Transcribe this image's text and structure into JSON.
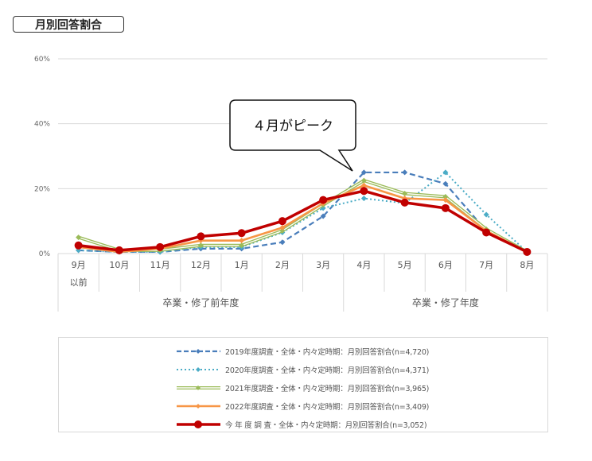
{
  "header": {
    "title": "月別回答割合"
  },
  "callout": {
    "text": "４月がピーク"
  },
  "colors": {
    "grid": "#d9d9d9",
    "s2019": "#4a7ebb",
    "s2020": "#4bacc6",
    "s2021": "#9bbb59",
    "s2022": "#f79646",
    "sThisYear": "#c00000"
  },
  "chart_data": {
    "type": "line",
    "title": "月別回答割合",
    "xlabel": "",
    "ylabel": "",
    "ylim": [
      0,
      60
    ],
    "yticks": [
      "0%",
      "20%",
      "40%",
      "60%"
    ],
    "grid": true,
    "legend_position": "bottom",
    "categories": [
      "9月以前",
      "10月",
      "11月",
      "12月",
      "1月",
      "2月",
      "3月",
      "4月",
      "5月",
      "6月",
      "7月",
      "8月"
    ],
    "category_labels": [
      {
        "line1": "9月",
        "line2": "以前"
      },
      {
        "line1": "10月",
        "line2": ""
      },
      {
        "line1": "11月",
        "line2": ""
      },
      {
        "line1": "12月",
        "line2": ""
      },
      {
        "line1": "1月",
        "line2": ""
      },
      {
        "line1": "2月",
        "line2": ""
      },
      {
        "line1": "3月",
        "line2": ""
      },
      {
        "line1": "4月",
        "line2": ""
      },
      {
        "line1": "5月",
        "line2": ""
      },
      {
        "line1": "6月",
        "line2": ""
      },
      {
        "line1": "7月",
        "line2": ""
      },
      {
        "line1": "8月",
        "line2": ""
      }
    ],
    "groups": [
      {
        "label": "卒業・修了前年度",
        "start": 0,
        "end": 6
      },
      {
        "label": "卒業・修了年度",
        "start": 7,
        "end": 11
      }
    ],
    "series": [
      {
        "name": "2019年度調査・全体・内々定時期：月別回答割合(n=4,720)",
        "style": "dashed",
        "color": "#4a7ebb",
        "values": [
          1.0,
          0.5,
          0.5,
          1.5,
          1.5,
          3.5,
          11.5,
          25.0,
          25.0,
          21.5,
          7.0,
          0.5
        ]
      },
      {
        "name": "2020年度調査・全体・内々定時期：月別回答割合(n=4,371)",
        "style": "dotted",
        "color": "#4bacc6",
        "values": [
          1.0,
          0.5,
          0.5,
          2.0,
          2.0,
          6.5,
          14.0,
          17.0,
          15.5,
          25.0,
          12.0,
          0.5
        ]
      },
      {
        "name": "2021年度調査・全体・内々定時期：月別回答割合(n=3,965)",
        "style": "double",
        "color": "#9bbb59",
        "values": [
          5.0,
          1.0,
          1.0,
          2.5,
          2.5,
          7.0,
          15.0,
          22.5,
          18.5,
          17.5,
          7.5,
          0.5
        ]
      },
      {
        "name": "2022年度調査・全体・内々定時期：月別回答割合(n=3,409)",
        "style": "solid",
        "color": "#f79646",
        "values": [
          2.0,
          0.5,
          1.5,
          4.0,
          4.0,
          8.0,
          15.5,
          21.0,
          17.0,
          16.5,
          7.0,
          0.5
        ]
      },
      {
        "name": "今 年 度 調 査・全体・内々定時期：月別回答割合(n=3,052)",
        "style": "bold",
        "color": "#c00000",
        "values": [
          2.5,
          1.0,
          2.0,
          5.3,
          6.3,
          10.0,
          16.5,
          19.3,
          15.7,
          14.0,
          6.5,
          0.5
        ]
      }
    ],
    "annotations": [
      {
        "text": "４月がピーク",
        "points_to": "4月"
      }
    ]
  },
  "legend": {
    "items": [
      "2019年度調査・全体・内々定時期：月別回答割合(n=4,720)",
      "2020年度調査・全体・内々定時期：月別回答割合(n=4,371)",
      "2021年度調査・全体・内々定時期：月別回答割合(n=3,965)",
      "2022年度調査・全体・内々定時期：月別回答割合(n=3,409)",
      "今 年 度 調 査・全体・内々定時期：月別回答割合(n=3,052)"
    ]
  }
}
